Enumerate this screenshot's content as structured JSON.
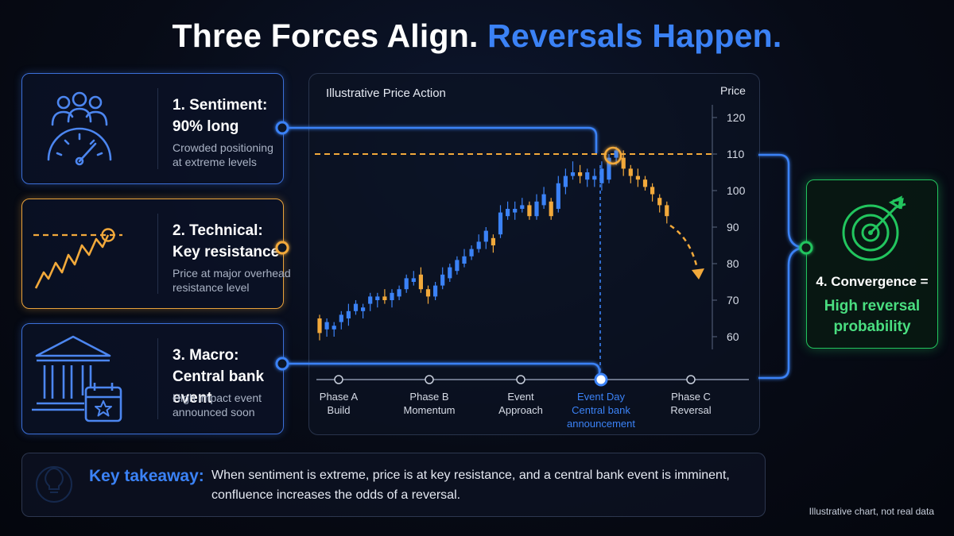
{
  "title": {
    "part1": "Three Forces Align.",
    "part2": "Reversals Happen."
  },
  "cards": [
    {
      "title_line1": "1. Sentiment:",
      "title_line2": "90% long",
      "desc_line1": "Crowded positioning",
      "desc_line2": "at extreme levels",
      "icon": "crowd-gauge-icon"
    },
    {
      "title_line1": "2. Technical:",
      "title_line2": "Key resistance",
      "desc_line1": "Price at major overhead",
      "desc_line2": "resistance level",
      "icon": "resistance-line-icon"
    },
    {
      "title_line1": "3. Macro:",
      "title_line2": "Central bank event",
      "desc_line1": "High impact event",
      "desc_line2": "announced soon",
      "icon": "bank-calendar-icon"
    }
  ],
  "chart": {
    "panel_title": "Illustrative Price Action",
    "axis_label": "Price",
    "phases": [
      {
        "line1": "Phase A",
        "line2": "Build",
        "line3": ""
      },
      {
        "line1": "Phase B",
        "line2": "Momentum",
        "line3": ""
      },
      {
        "line1": "Event",
        "line2": "Approach",
        "line3": ""
      },
      {
        "line1": "Event Day",
        "line2": "Central bank",
        "line3": "announcement"
      },
      {
        "line1": "Phase C",
        "line2": "Reversal",
        "line3": ""
      }
    ]
  },
  "chart_data": {
    "type": "candlestick",
    "ylabel": "Price",
    "ylim": [
      55,
      125
    ],
    "yticks": [
      60,
      70,
      80,
      90,
      100,
      110,
      120
    ],
    "resistance_level": 110,
    "candles": [
      {
        "o": 61,
        "c": 65,
        "h": 66,
        "l": 59,
        "color": "orange"
      },
      {
        "o": 62,
        "c": 64,
        "h": 65,
        "l": 60,
        "color": "blue"
      },
      {
        "o": 62,
        "c": 63,
        "h": 64,
        "l": 60,
        "color": "blue"
      },
      {
        "o": 64,
        "c": 66,
        "h": 67,
        "l": 62,
        "color": "blue"
      },
      {
        "o": 65,
        "c": 67,
        "h": 69,
        "l": 63,
        "color": "blue"
      },
      {
        "o": 67,
        "c": 69,
        "h": 70,
        "l": 66,
        "color": "blue"
      },
      {
        "o": 67,
        "c": 68,
        "h": 69,
        "l": 65,
        "color": "blue"
      },
      {
        "o": 69,
        "c": 71,
        "h": 72,
        "l": 67,
        "color": "blue"
      },
      {
        "o": 70,
        "c": 71,
        "h": 72,
        "l": 68,
        "color": "blue"
      },
      {
        "o": 71,
        "c": 70,
        "h": 73,
        "l": 69,
        "color": "orange"
      },
      {
        "o": 70,
        "c": 72,
        "h": 73,
        "l": 68,
        "color": "blue"
      },
      {
        "o": 71,
        "c": 73,
        "h": 74,
        "l": 70,
        "color": "blue"
      },
      {
        "o": 73,
        "c": 76,
        "h": 77,
        "l": 72,
        "color": "blue"
      },
      {
        "o": 75,
        "c": 76,
        "h": 78,
        "l": 74,
        "color": "blue"
      },
      {
        "o": 77,
        "c": 73,
        "h": 79,
        "l": 72,
        "color": "orange"
      },
      {
        "o": 73,
        "c": 71,
        "h": 74,
        "l": 69,
        "color": "orange"
      },
      {
        "o": 71,
        "c": 74,
        "h": 75,
        "l": 70,
        "color": "blue"
      },
      {
        "o": 74,
        "c": 77,
        "h": 79,
        "l": 73,
        "color": "blue"
      },
      {
        "o": 76,
        "c": 79,
        "h": 80,
        "l": 75,
        "color": "blue"
      },
      {
        "o": 78,
        "c": 81,
        "h": 82,
        "l": 77,
        "color": "blue"
      },
      {
        "o": 80,
        "c": 82,
        "h": 84,
        "l": 79,
        "color": "blue"
      },
      {
        "o": 82,
        "c": 84,
        "h": 85,
        "l": 81,
        "color": "blue"
      },
      {
        "o": 84,
        "c": 86,
        "h": 88,
        "l": 83,
        "color": "blue"
      },
      {
        "o": 86,
        "c": 89,
        "h": 90,
        "l": 84,
        "color": "blue"
      },
      {
        "o": 87,
        "c": 85,
        "h": 88,
        "l": 83,
        "color": "orange"
      },
      {
        "o": 88,
        "c": 94,
        "h": 96,
        "l": 87,
        "color": "blue"
      },
      {
        "o": 93,
        "c": 95,
        "h": 97,
        "l": 92,
        "color": "blue"
      },
      {
        "o": 94,
        "c": 95,
        "h": 97,
        "l": 92,
        "color": "blue"
      },
      {
        "o": 95,
        "c": 96,
        "h": 98,
        "l": 94,
        "color": "blue"
      },
      {
        "o": 96,
        "c": 93,
        "h": 97,
        "l": 92,
        "color": "orange"
      },
      {
        "o": 93,
        "c": 97,
        "h": 99,
        "l": 92,
        "color": "blue"
      },
      {
        "o": 96,
        "c": 99,
        "h": 101,
        "l": 95,
        "color": "blue"
      },
      {
        "o": 97,
        "c": 93,
        "h": 98,
        "l": 92,
        "color": "orange"
      },
      {
        "o": 95,
        "c": 102,
        "h": 104,
        "l": 94,
        "color": "blue"
      },
      {
        "o": 101,
        "c": 104,
        "h": 106,
        "l": 99,
        "color": "blue"
      },
      {
        "o": 104,
        "c": 105,
        "h": 108,
        "l": 103,
        "color": "blue"
      },
      {
        "o": 105,
        "c": 104,
        "h": 107,
        "l": 102,
        "color": "orange"
      },
      {
        "o": 103,
        "c": 105,
        "h": 106,
        "l": 101,
        "color": "blue"
      },
      {
        "o": 103,
        "c": 104,
        "h": 106,
        "l": 101,
        "color": "blue"
      },
      {
        "o": 102,
        "c": 106,
        "h": 108,
        "l": 100,
        "color": "blue"
      },
      {
        "o": 103,
        "c": 109,
        "h": 110,
        "l": 102,
        "color": "blue"
      },
      {
        "o": 109,
        "c": 111,
        "h": 112,
        "l": 107,
        "color": "blue"
      },
      {
        "o": 109,
        "c": 106,
        "h": 111,
        "l": 104,
        "color": "orange"
      },
      {
        "o": 106,
        "c": 104,
        "h": 107,
        "l": 102,
        "color": "orange"
      },
      {
        "o": 104,
        "c": 103,
        "h": 106,
        "l": 101,
        "color": "orange"
      },
      {
        "o": 103,
        "c": 101,
        "h": 104,
        "l": 100,
        "color": "orange"
      },
      {
        "o": 101,
        "c": 99,
        "h": 102,
        "l": 97,
        "color": "orange"
      },
      {
        "o": 98,
        "c": 96,
        "h": 99,
        "l": 94,
        "color": "orange"
      },
      {
        "o": 96,
        "c": 93,
        "h": 97,
        "l": 91,
        "color": "orange"
      }
    ]
  },
  "convergence": {
    "label": "4. Convergence =",
    "result_line1": "High reversal",
    "result_line2": "probability",
    "icon": "target-icon"
  },
  "takeaway": {
    "label": "Key takeaway:",
    "text_line1": "When sentiment is extreme, price is at key resistance, and a central bank event is imminent,",
    "text_line2": "confluence increases the odds of a reversal.",
    "icon": "lightbulb-icon"
  },
  "footnote": "Illustrative chart, not real data",
  "colors": {
    "accent_blue": "#3b82f6",
    "accent_orange": "#f2a93b",
    "accent_green": "#22c55e",
    "text_green": "#4ade80"
  }
}
